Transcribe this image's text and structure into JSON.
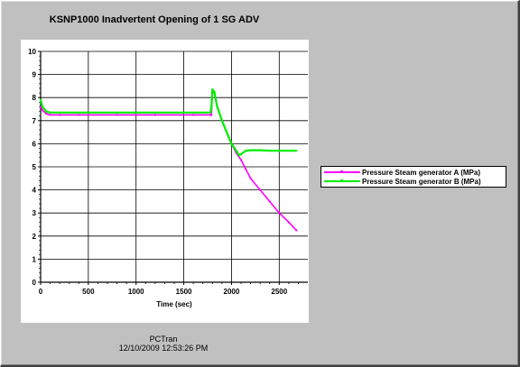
{
  "window": {
    "footer_line1": "PCTran",
    "footer_line2": "12/10/2009 12:53:26 PM"
  },
  "chart_data": {
    "type": "line",
    "title": "KSNP1000 Inadvertent Opening of 1 SG ADV",
    "xlabel": "Time (sec)",
    "ylabel": "",
    "xlim": [
      0,
      2800
    ],
    "ylim": [
      0,
      10
    ],
    "xticks": [
      0,
      500,
      1000,
      1500,
      2000,
      2500
    ],
    "xtick_labels": [
      "0",
      "500",
      "1000",
      "1500",
      "2000",
      "2500"
    ],
    "yticks": [
      0,
      1,
      2,
      3,
      4,
      5,
      6,
      7,
      8,
      9,
      10
    ],
    "ytick_labels": [
      "0",
      "1",
      "2",
      "3",
      "4",
      "5",
      "6",
      "7",
      "8",
      "9",
      "10"
    ],
    "grid": true,
    "legend_position": "right",
    "series": [
      {
        "name": "Pressure Steam generator A (MPa)",
        "color": "#ff00ff",
        "x": [
          0,
          20,
          60,
          100,
          200,
          400,
          800,
          1200,
          1600,
          1780,
          1790,
          1800,
          1820,
          1850,
          1900,
          1950,
          2000,
          2050,
          2100,
          2150,
          2200,
          2300,
          2400,
          2500,
          2600,
          2680
        ],
        "y": [
          7.6,
          7.45,
          7.3,
          7.25,
          7.25,
          7.25,
          7.25,
          7.25,
          7.25,
          7.25,
          7.25,
          8.3,
          8.2,
          7.6,
          7.0,
          6.5,
          6.0,
          5.6,
          5.3,
          4.9,
          4.5,
          4.0,
          3.5,
          3.0,
          2.6,
          2.25
        ]
      },
      {
        "name": "Pressure Steam generator B (MPa)",
        "color": "#00ee00",
        "x": [
          0,
          20,
          60,
          100,
          200,
          400,
          800,
          1200,
          1600,
          1780,
          1790,
          1800,
          1820,
          1850,
          1900,
          1950,
          2000,
          2050,
          2080,
          2100,
          2150,
          2200,
          2300,
          2400,
          2500,
          2600,
          2680
        ],
        "y": [
          7.9,
          7.6,
          7.4,
          7.35,
          7.35,
          7.35,
          7.35,
          7.35,
          7.35,
          7.35,
          7.6,
          8.35,
          8.25,
          7.6,
          7.0,
          6.5,
          6.0,
          5.7,
          5.5,
          5.55,
          5.7,
          5.72,
          5.72,
          5.7,
          5.7,
          5.7,
          5.7
        ]
      }
    ]
  }
}
